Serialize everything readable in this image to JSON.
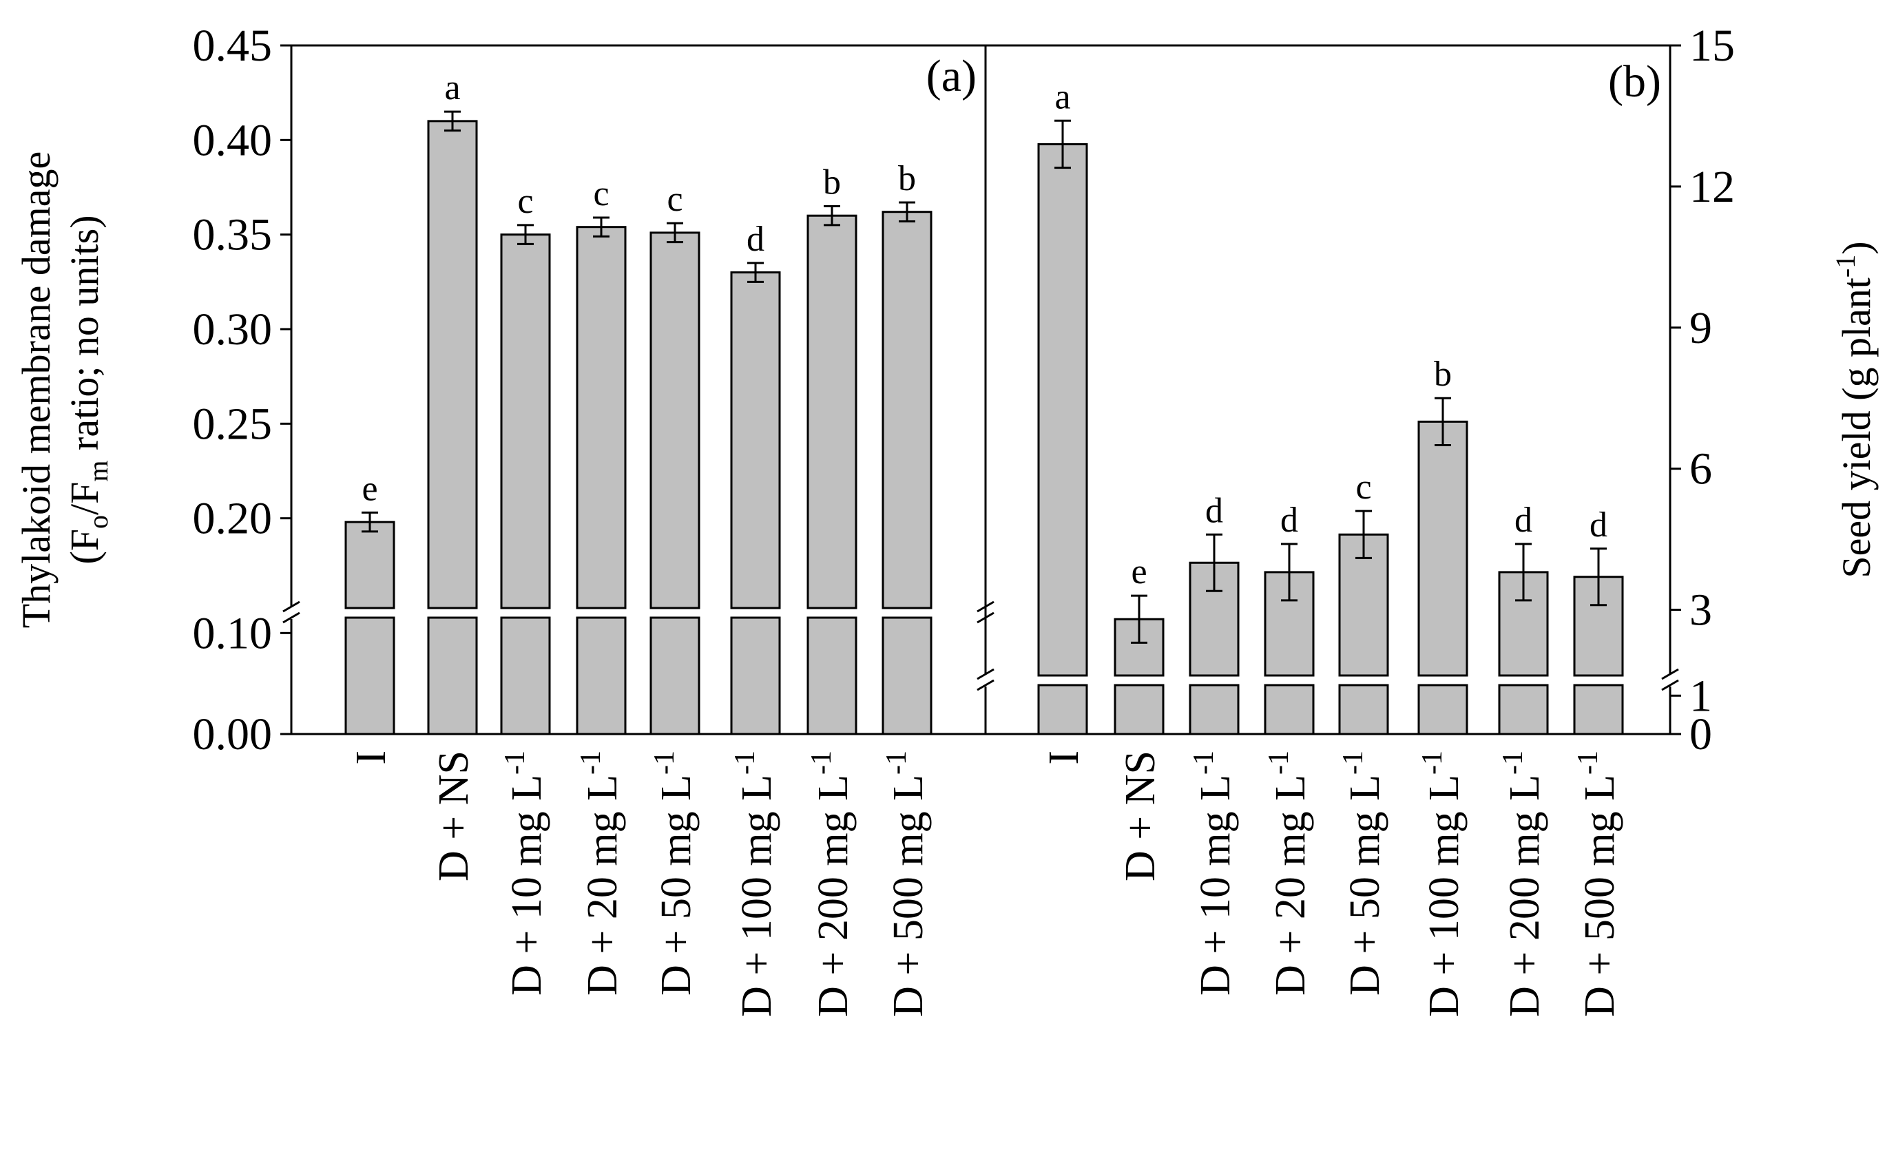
{
  "chart_data": [
    {
      "type": "bar",
      "panel_label": "(a)",
      "categories": [
        "I",
        "D + NS",
        "D + 10 mg L",
        "D + 20 mg L",
        "D + 50 mg L",
        "D + 100 mg L",
        "D + 200 mg L",
        "D + 500 mg L"
      ],
      "unit_superscript": "-1",
      "values": [
        0.198,
        0.41,
        0.35,
        0.354,
        0.351,
        0.33,
        0.36,
        0.362
      ],
      "errors": [
        0.005,
        0.005,
        0.005,
        0.005,
        0.005,
        0.005,
        0.005,
        0.005
      ],
      "letters": [
        "e",
        "a",
        "c",
        "c",
        "c",
        "d",
        "b",
        "b"
      ],
      "ylabel_line1": "Thylakoid membrane damage",
      "ylabel_line2": {
        "open": "(F",
        "sub1": "o",
        "slash": "/F",
        "sub2": "m",
        "rest": " ratio; no units)"
      },
      "ylim": [
        0,
        0.45
      ],
      "axis_break": {
        "lower": [
          0,
          0.12
        ],
        "upper": [
          0.15,
          0.45
        ]
      },
      "yticks": [
        {
          "value": 0.0,
          "label": "0.00"
        },
        {
          "value": 0.1,
          "label": "0.10"
        },
        {
          "value": 0.2,
          "label": "0.20"
        },
        {
          "value": 0.25,
          "label": "0.25"
        },
        {
          "value": 0.3,
          "label": "0.30"
        },
        {
          "value": 0.35,
          "label": "0.35"
        },
        {
          "value": 0.4,
          "label": "0.40"
        },
        {
          "value": 0.45,
          "label": "0.45"
        }
      ],
      "y_axis_side": "left"
    },
    {
      "type": "bar",
      "panel_label": "(b)",
      "categories": [
        "I",
        "D + NS",
        "D + 10 mg L",
        "D + 20 mg L",
        "D + 50 mg L",
        "D + 100 mg L",
        "D + 200 mg L",
        "D + 500 mg L"
      ],
      "unit_superscript": "-1",
      "values": [
        12.9,
        2.8,
        4.0,
        3.8,
        4.6,
        7.0,
        3.8,
        3.7
      ],
      "errors": [
        0.5,
        0.5,
        0.6,
        0.6,
        0.5,
        0.5,
        0.6,
        0.6
      ],
      "letters": [
        "a",
        "e",
        "d",
        "d",
        "c",
        "b",
        "d",
        "d"
      ],
      "ylabel": {
        "main": "Seed yield (g plant",
        "sup": "-1",
        "close": ")"
      },
      "ylim": [
        0,
        15
      ],
      "axis_break": {
        "lower": [
          0,
          1.4
        ],
        "upper": [
          1.5,
          15
        ]
      },
      "yticks": [
        {
          "value": 0,
          "label": "0"
        },
        {
          "value": 1,
          "label": "1"
        },
        {
          "value": 3,
          "label": "3"
        },
        {
          "value": 6,
          "label": "6"
        },
        {
          "value": 9,
          "label": "9"
        },
        {
          "value": 12,
          "label": "12"
        },
        {
          "value": 15,
          "label": "15"
        }
      ],
      "y_axis_side": "right"
    }
  ],
  "colors": {
    "bar_fill": "#c0c0c0",
    "stroke": "#000000",
    "background": "#ffffff"
  }
}
